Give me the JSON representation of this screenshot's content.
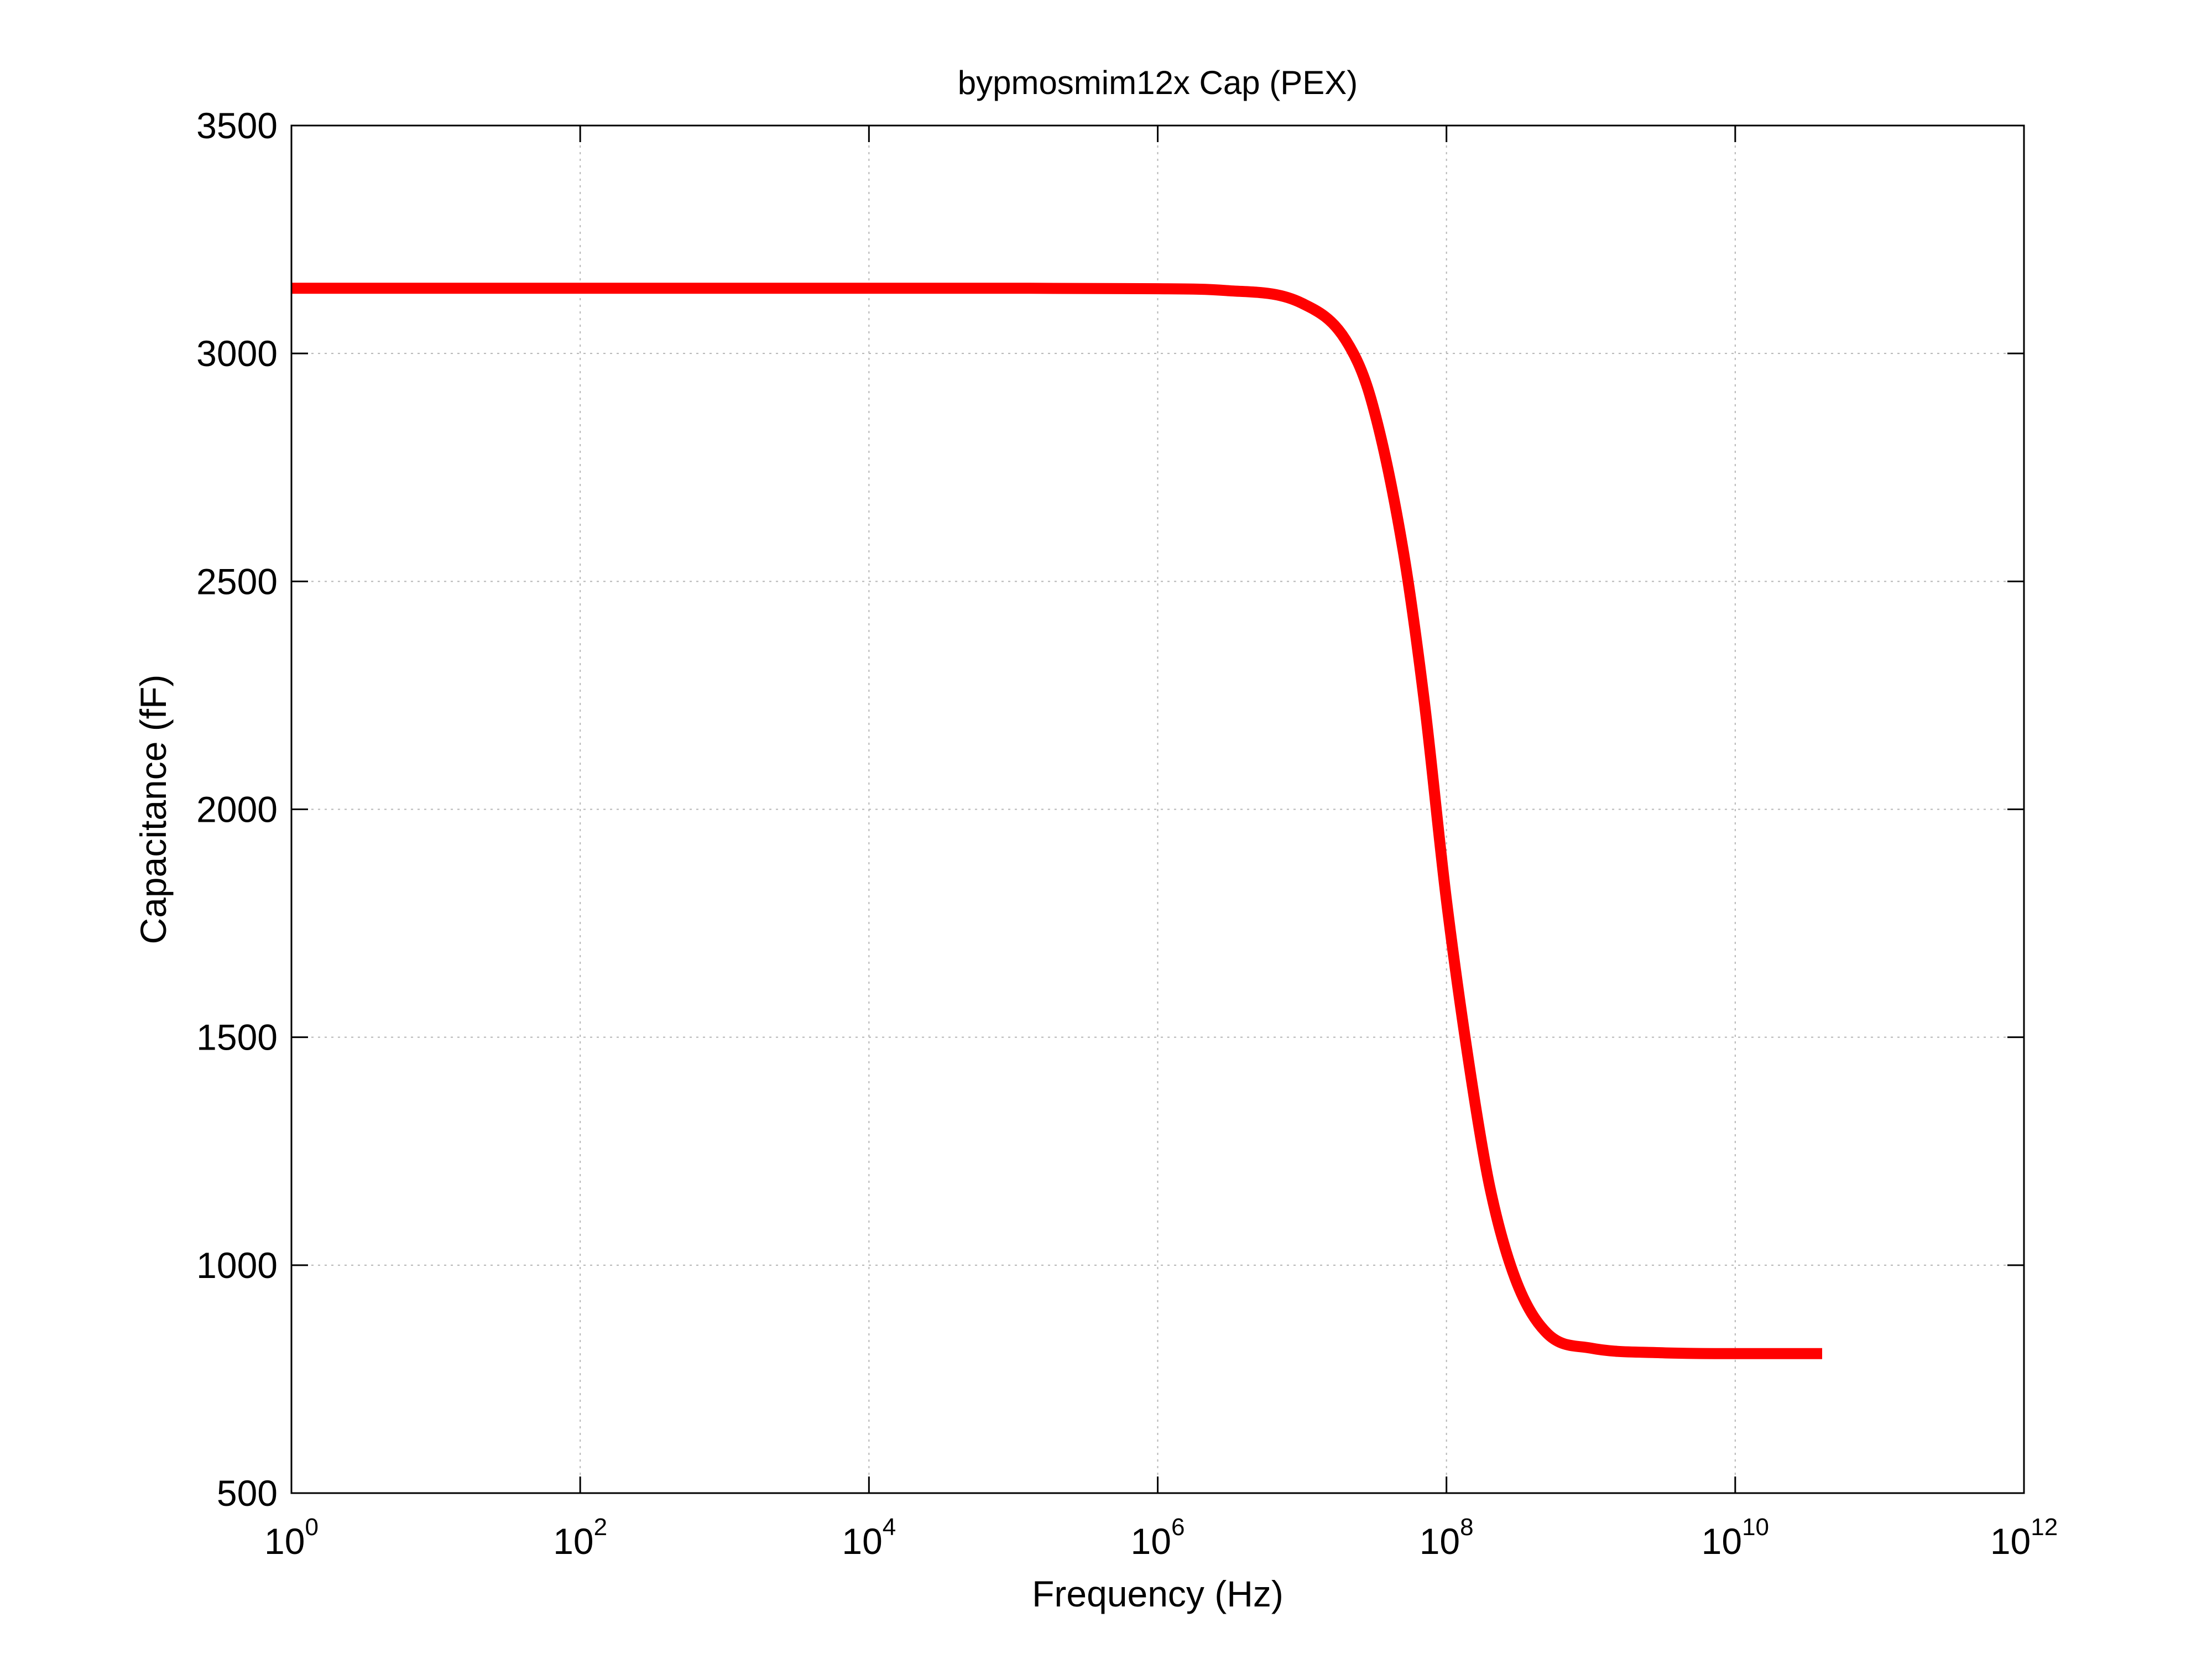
{
  "chart_data": {
    "type": "line",
    "title": "bypmosmim12x Cap  (PEX)",
    "xlabel": "Frequency (Hz)",
    "ylabel": "Capacitance (fF)",
    "xscale": "log",
    "xlim": [
      1,
      1000000000000
    ],
    "ylim": [
      500,
      3500
    ],
    "grid": true,
    "xticks": [
      {
        "base": "10",
        "exp": "0"
      },
      {
        "base": "10",
        "exp": "2"
      },
      {
        "base": "10",
        "exp": "4"
      },
      {
        "base": "10",
        "exp": "6"
      },
      {
        "base": "10",
        "exp": "8"
      },
      {
        "base": "10",
        "exp": "10"
      },
      {
        "base": "10",
        "exp": "12"
      }
    ],
    "xtick_values": [
      1,
      100,
      10000,
      1000000,
      100000000,
      10000000000,
      1000000000000
    ],
    "yticks": [
      "500",
      "1000",
      "1500",
      "2000",
      "2500",
      "3000",
      "3500"
    ],
    "ytick_values": [
      500,
      1000,
      1500,
      2000,
      2500,
      3000,
      3500
    ],
    "series": [
      {
        "color": "#ff0000",
        "x": [
          1,
          10,
          100,
          1000,
          10000,
          100000,
          1000000,
          3000000,
          10000000,
          20000000,
          30000000,
          50000000,
          70000000,
          100000000,
          150000000,
          200000000,
          300000000,
          500000000,
          1000000000,
          3000000000,
          10000000000,
          40000000000
        ],
        "y": [
          3143,
          3143,
          3143,
          3143,
          3143,
          3143,
          3142,
          3138,
          3110,
          3030,
          2900,
          2570,
          2240,
          1800,
          1400,
          1170,
          970,
          850,
          818,
          808,
          806,
          806
        ]
      }
    ]
  },
  "colors": {
    "line": "#ff0000",
    "axes": "#000000",
    "grid": "#b0b0b0",
    "background": "#ffffff"
  }
}
